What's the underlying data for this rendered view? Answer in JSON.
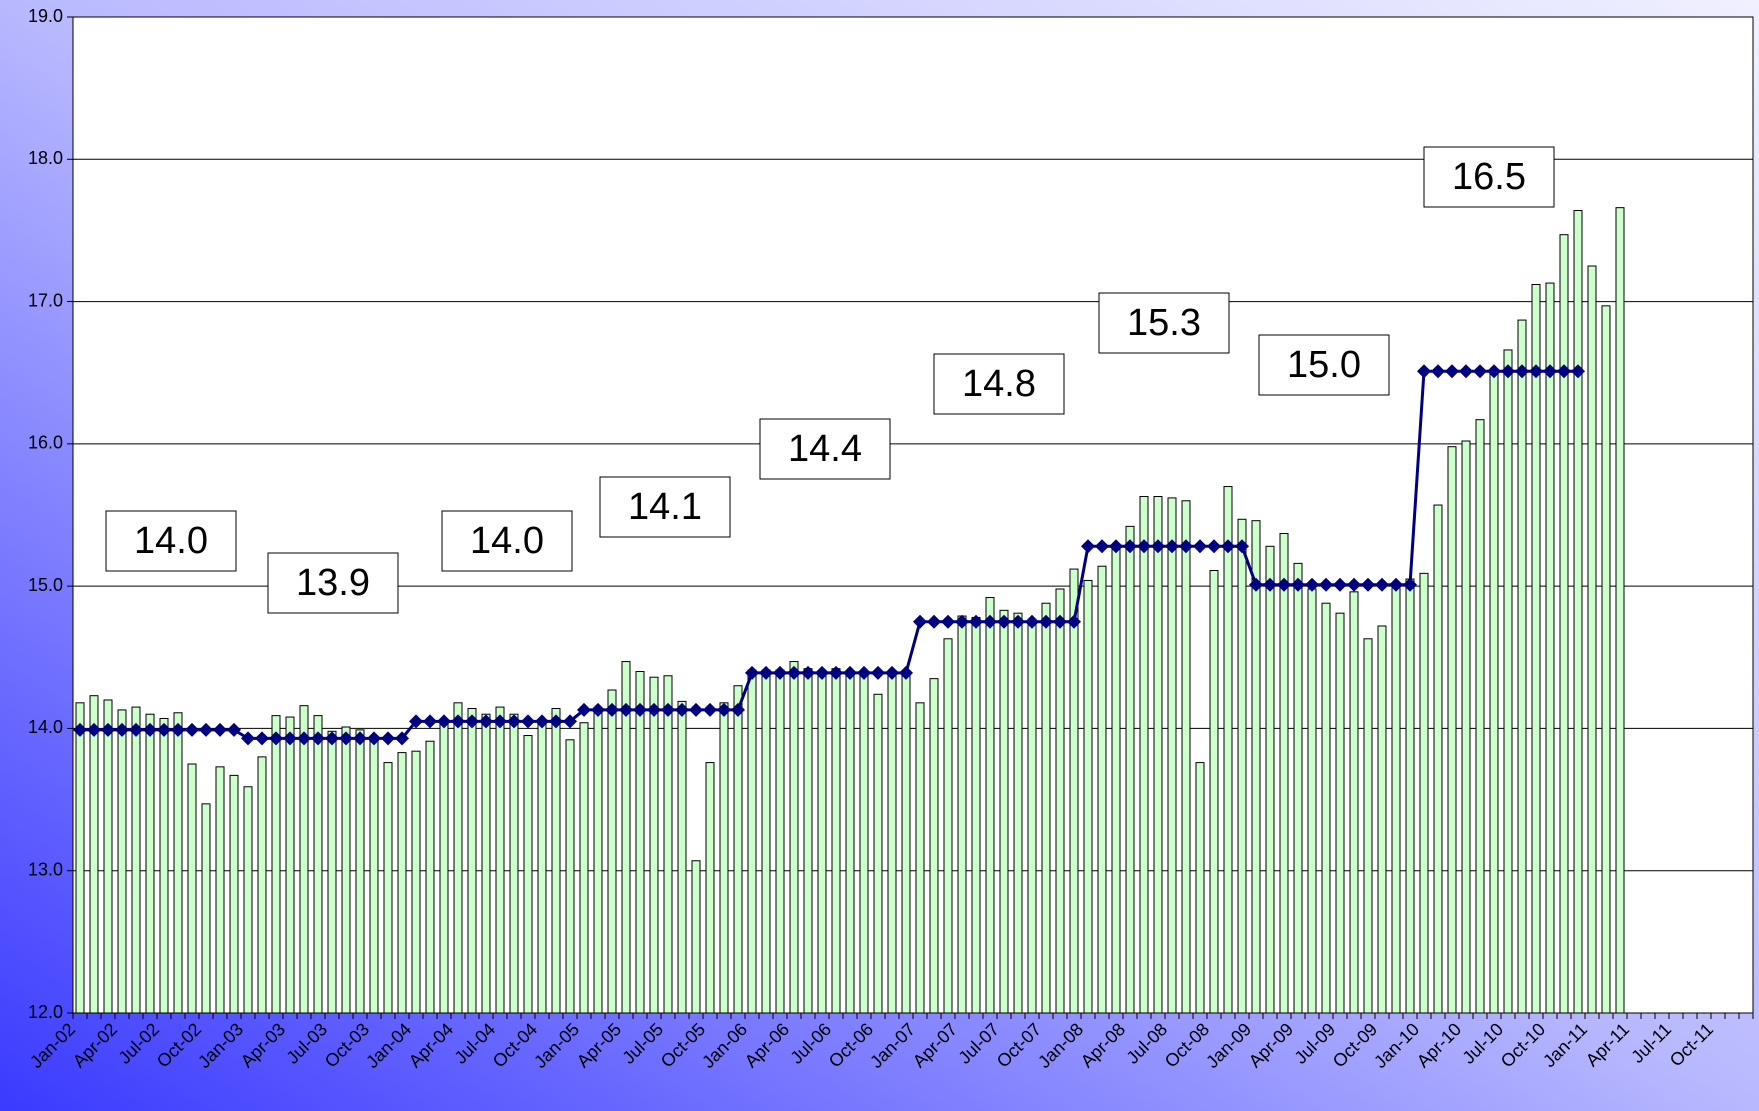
{
  "chart_data": {
    "type": "bar",
    "categories": [
      "Jan-02",
      null,
      null,
      "Apr-02",
      null,
      null,
      "Jul-02",
      null,
      null,
      "Oct-02",
      null,
      null,
      "Jan-03",
      null,
      null,
      "Apr-03",
      null,
      null,
      "Jul-03",
      null,
      null,
      "Oct-03",
      null,
      null,
      "Jan-04",
      null,
      null,
      "Apr-04",
      null,
      null,
      "Jul-04",
      null,
      null,
      "Oct-04",
      null,
      null,
      "Jan-05",
      null,
      null,
      "Apr-05",
      null,
      null,
      "Jul-05",
      null,
      null,
      "Oct-05",
      null,
      null,
      "Jan-06",
      null,
      null,
      "Apr-06",
      null,
      null,
      "Jul-06",
      null,
      null,
      "Oct-06",
      null,
      null,
      "Jan-07",
      null,
      null,
      "Apr-07",
      null,
      null,
      "Jul-07",
      null,
      null,
      "Oct-07",
      null,
      null,
      "Jan-08",
      null,
      null,
      "Apr-08",
      null,
      null,
      "Jul-08",
      null,
      null,
      "Oct-08",
      null,
      null,
      "Jan-09",
      null,
      null,
      "Apr-09",
      null,
      null,
      "Jul-09",
      null,
      null,
      "Oct-09",
      null,
      null,
      "Jan-10",
      null,
      null,
      "Apr-10",
      null,
      null,
      "Jul-10",
      null,
      null,
      "Oct-10",
      null,
      null,
      "Jan-11",
      null,
      null,
      "Apr-11",
      null,
      null,
      "Jul-11",
      null,
      null,
      "Oct-11",
      null,
      null
    ],
    "series": [
      {
        "type": "bar",
        "color": "#ccffcc",
        "values": [
          14.18,
          14.23,
          14.2,
          14.13,
          14.15,
          14.1,
          14.07,
          14.11,
          13.75,
          13.47,
          13.73,
          13.67,
          13.59,
          13.8,
          14.09,
          14.08,
          14.16,
          14.09,
          13.98,
          14.01,
          13.99,
          13.92,
          13.76,
          13.83,
          13.84,
          13.91,
          14.04,
          14.18,
          14.14,
          14.1,
          14.15,
          14.1,
          13.95,
          14.06,
          14.14,
          13.92,
          14.04,
          14.14,
          14.27,
          14.47,
          14.4,
          14.36,
          14.37,
          14.19,
          13.07,
          13.76,
          14.18,
          14.3,
          14.41,
          14.41,
          14.41,
          14.47,
          14.42,
          14.4,
          14.42,
          14.4,
          14.4,
          14.24,
          14.4,
          14.4,
          14.18,
          14.35,
          14.63,
          14.79,
          14.78,
          14.92,
          14.83,
          14.81,
          14.75,
          14.88,
          14.98,
          15.12,
          15.04,
          15.14,
          15.29,
          15.42,
          15.63,
          15.63,
          15.62,
          15.6,
          13.76,
          15.11,
          15.7,
          15.47,
          15.46,
          15.28,
          15.37,
          15.16,
          14.98,
          14.88,
          14.81,
          14.96,
          14.63,
          14.72,
          15.0,
          15.05,
          15.09,
          15.57,
          15.98,
          16.02,
          16.17,
          16.5,
          16.66,
          16.87,
          17.12,
          17.13,
          17.47,
          17.64,
          17.25,
          16.97,
          17.66,
          null,
          null,
          null,
          null,
          null,
          null,
          null,
          null,
          null
        ]
      },
      {
        "type": "line",
        "color": "#000080",
        "values": [
          13.99,
          13.99,
          13.99,
          13.99,
          13.99,
          13.99,
          13.99,
          13.99,
          13.99,
          13.99,
          13.99,
          13.99,
          13.93,
          13.93,
          13.93,
          13.93,
          13.93,
          13.93,
          13.93,
          13.93,
          13.93,
          13.93,
          13.93,
          13.93,
          14.05,
          14.05,
          14.05,
          14.05,
          14.05,
          14.05,
          14.05,
          14.05,
          14.05,
          14.05,
          14.05,
          14.05,
          14.13,
          14.13,
          14.13,
          14.13,
          14.13,
          14.13,
          14.13,
          14.13,
          14.13,
          14.13,
          14.13,
          14.13,
          14.39,
          14.39,
          14.39,
          14.39,
          14.39,
          14.39,
          14.39,
          14.39,
          14.39,
          14.39,
          14.39,
          14.39,
          14.75,
          14.75,
          14.75,
          14.75,
          14.75,
          14.75,
          14.75,
          14.75,
          14.75,
          14.75,
          14.75,
          14.75,
          15.28,
          15.28,
          15.28,
          15.28,
          15.28,
          15.28,
          15.28,
          15.28,
          15.28,
          15.28,
          15.28,
          15.28,
          15.01,
          15.01,
          15.01,
          15.01,
          15.01,
          15.01,
          15.01,
          15.01,
          15.01,
          15.01,
          15.01,
          15.01,
          16.51,
          16.51,
          16.51,
          16.51,
          16.51,
          16.51,
          16.51,
          16.51,
          16.51,
          16.51,
          16.51,
          16.51,
          null,
          null,
          null,
          null,
          null,
          null,
          null,
          null,
          null,
          null,
          null,
          null
        ]
      }
    ],
    "annotations": [
      "14.0",
      "13.9",
      "14.0",
      "14.1",
      "14.4",
      "14.8",
      "15.3",
      "15.0",
      "16.5"
    ],
    "ylim": [
      12,
      19
    ],
    "yticks": [
      {
        "value": 12,
        "label": "12.0"
      },
      {
        "value": 13,
        "label": "13.0"
      },
      {
        "value": 14,
        "label": "14.0"
      },
      {
        "value": 15,
        "label": "15.0"
      },
      {
        "value": 16,
        "label": "16.0"
      },
      {
        "value": 17,
        "label": "17.0"
      },
      {
        "value": 18,
        "label": "18.0"
      },
      {
        "value": 19,
        "label": "19.0"
      }
    ],
    "grid": true
  }
}
